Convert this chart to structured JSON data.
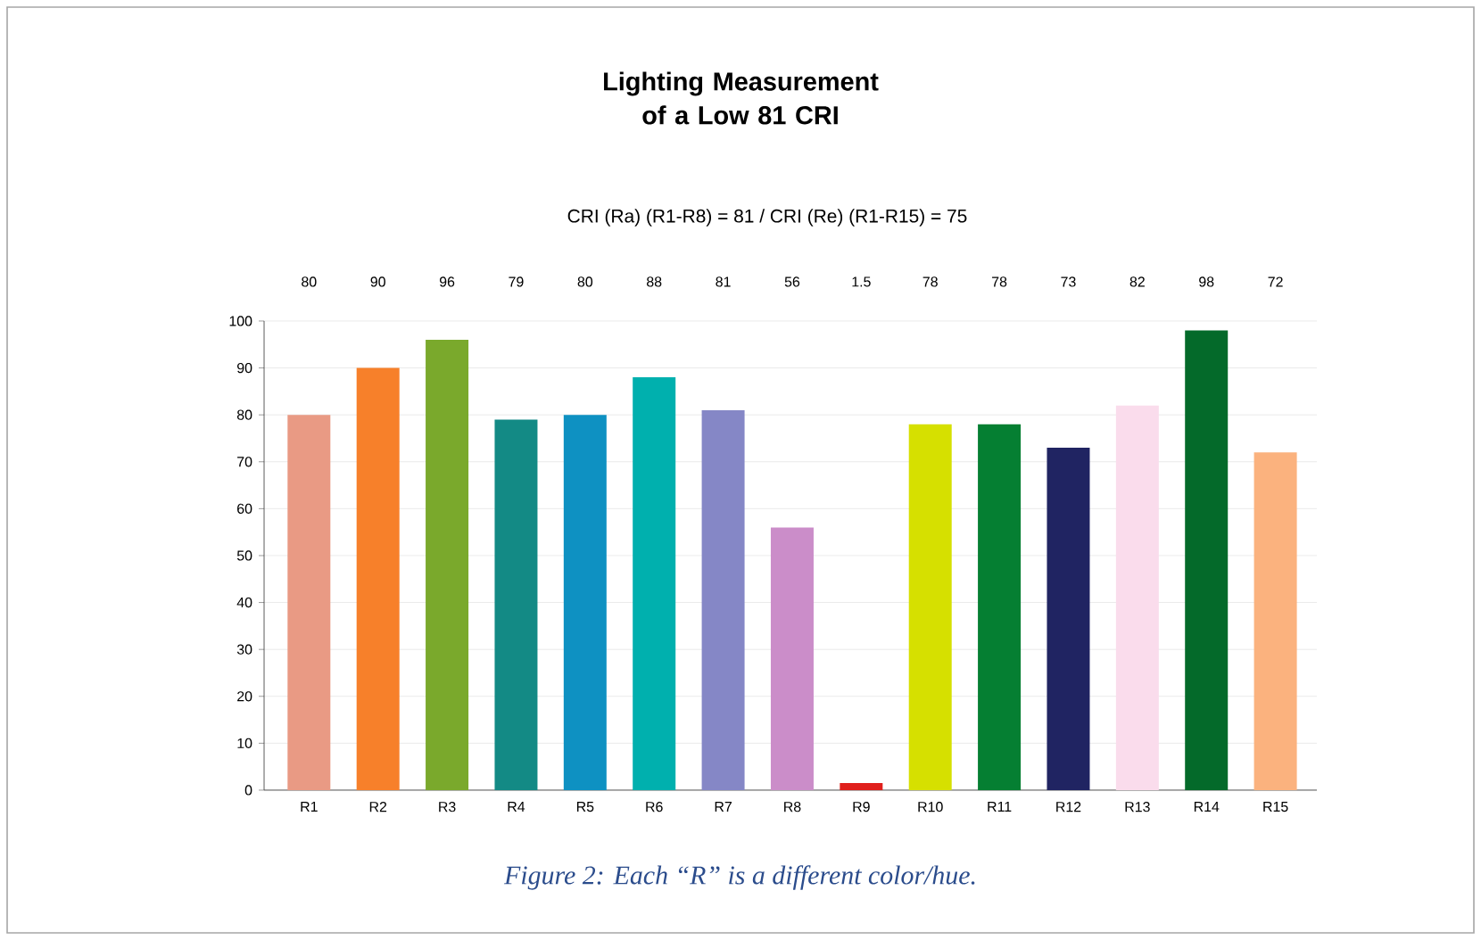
{
  "chart_data": {
    "type": "bar",
    "title": "Lighting Measurement of a Low 81 CRI",
    "subtitle": "CRI (Ra) (R1-R8) = 81 / CRI (Re) (R1-R15) = 75",
    "categories": [
      "R1",
      "R2",
      "R3",
      "R4",
      "R5",
      "R6",
      "R7",
      "R8",
      "R9",
      "R10",
      "R11",
      "R12",
      "R13",
      "R14",
      "R15"
    ],
    "values": [
      80,
      90,
      96,
      79,
      80,
      88,
      81,
      56,
      1.5,
      78,
      78,
      73,
      82,
      98,
      72
    ],
    "colors": [
      "#e99a84",
      "#f7802a",
      "#7aa92c",
      "#138a85",
      "#0e91c2",
      "#00b0ae",
      "#8587c6",
      "#cb8dc9",
      "#e0201c",
      "#d6e000",
      "#057f32",
      "#202462",
      "#fadcec",
      "#046a2a",
      "#fbb27e"
    ],
    "ylim": [
      0,
      100
    ],
    "yticks": [
      0,
      10,
      20,
      30,
      40,
      50,
      60,
      70,
      80,
      90,
      100
    ],
    "grid": "y",
    "data_labels": true,
    "annotations": [
      "Figure 2: Each “R” is a different color/hue."
    ]
  }
}
